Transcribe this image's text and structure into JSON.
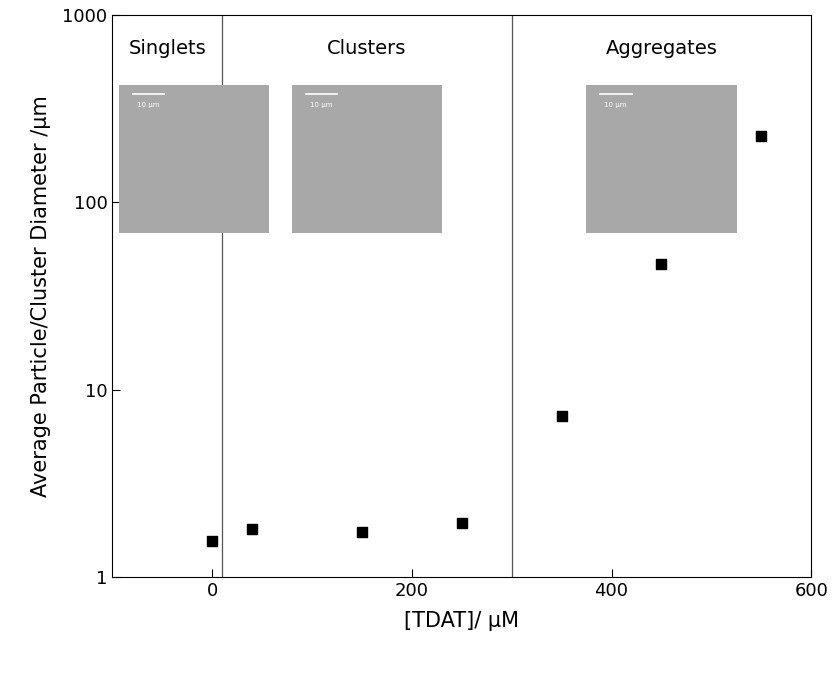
{
  "chart_data": {
    "type": "scatter",
    "x_label": "[TDAT]/ μM",
    "y_label": "Average Particle/Cluster Diameter /μm",
    "x": [
      0,
      40,
      150,
      250,
      350,
      450,
      550
    ],
    "values": [
      1.55,
      1.8,
      1.75,
      1.95,
      7.2,
      47,
      225
    ],
    "color": "#000000",
    "marker": "square",
    "log": "y",
    "xlim": [
      -100,
      600
    ],
    "xticks": [
      0,
      200,
      400,
      600
    ],
    "ylim": [
      1,
      1000
    ],
    "yticks": [
      1,
      10,
      100,
      1000
    ],
    "boundaries": [
      10,
      300
    ],
    "annotations": [
      "Singlets",
      "Clusters",
      "Aggregates"
    ],
    "scale_bar_label": "10 μm",
    "grid": false
  }
}
